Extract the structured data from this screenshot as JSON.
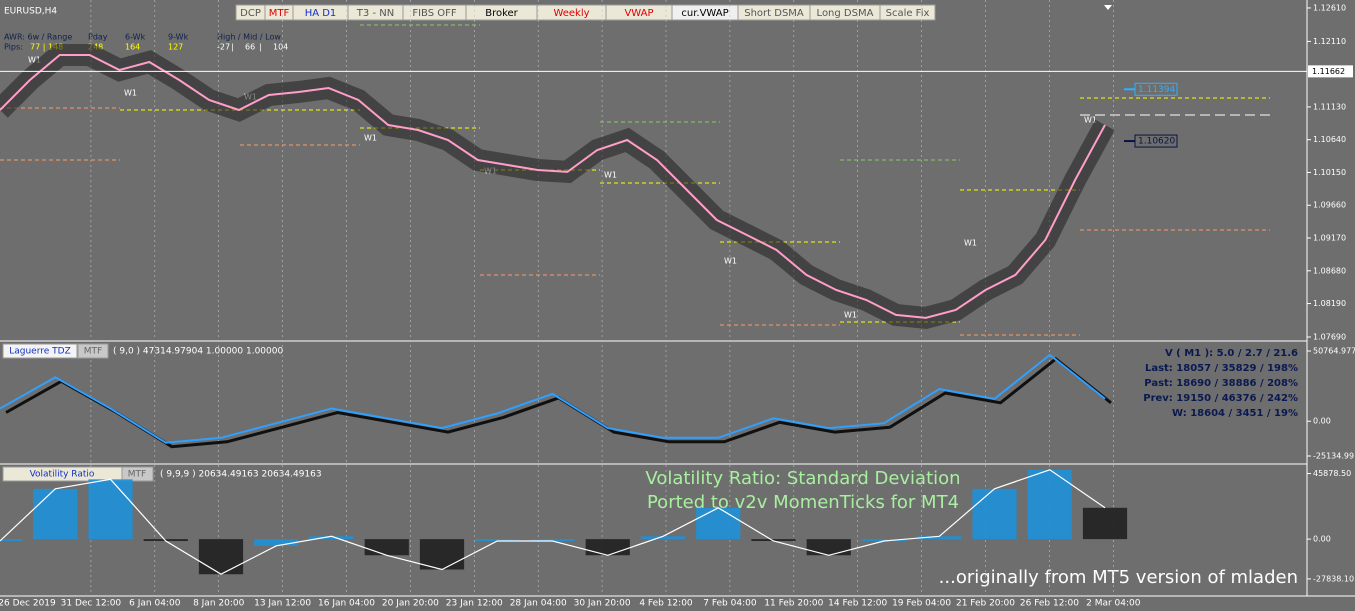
{
  "symbol": "EURUSD,H4",
  "toolbar": [
    {
      "label": "DCP",
      "color": "#555555"
    },
    {
      "label": "MTF",
      "color": "#e00000"
    },
    {
      "label": "HA D1",
      "color": "#1030d0"
    },
    {
      "label": "T3 - NN",
      "color": "#555555"
    },
    {
      "label": "FIBS OFF",
      "color": "#555555"
    },
    {
      "label": "Broker",
      "color": "#000000"
    },
    {
      "label": "Weekly",
      "color": "#e00000"
    },
    {
      "label": "VWAP",
      "color": "#e00000"
    },
    {
      "label": "cur.VWAP",
      "color": "#000000"
    },
    {
      "label": "Short DSMA",
      "color": "#555555"
    },
    {
      "label": "Long DSMA",
      "color": "#555555"
    },
    {
      "label": "Scale Fix",
      "color": "#555555"
    }
  ],
  "info": {
    "headers": [
      "AWR: 6w / Range",
      "Pday",
      "6-Wk",
      "9-Wk",
      "High / Mid / Low"
    ],
    "pips_label": "Pips:",
    "pips": [
      "77 | 148",
      "248",
      "164",
      "127"
    ],
    "high_mid_low": [
      "-27",
      "|",
      "66",
      "|",
      "104"
    ]
  },
  "w1_label": "W1",
  "time_labels": [
    "26 Dec 2019",
    "31 Dec 12:00",
    "6 Jan 04:00",
    "8 Jan 20:00",
    "13 Jan 12:00",
    "16 Jan 04:00",
    "20 Jan 20:00",
    "23 Jan 12:00",
    "28 Jan 04:00",
    "30 Jan 20:00",
    "4 Feb 12:00",
    "7 Feb 04:00",
    "11 Feb 20:00",
    "14 Feb 12:00",
    "19 Feb 04:00",
    "21 Feb 20:00",
    "26 Feb 12:00",
    "2 Mar 04:00"
  ],
  "laguerre": {
    "title": "Laguerre TDZ",
    "mtf": "MTF",
    "params": "( 9,0 ) 47314.97904 1.00000 1.00000",
    "stats": [
      "V ( M1 ): 5.0 / 2.7 / 21.6",
      "Last: 18057 / 35829 / 198%",
      "Past: 18690 / 38886 / 208%",
      "Prev: 19150 / 46376 / 242%",
      "W: 18604 / 3451 / 19%"
    ]
  },
  "volatility": {
    "title": "Volatility Ratio",
    "mtf": "MTF",
    "params": "( 9,9,9 ) 20634.49163 20634.49163",
    "caption": [
      "Volatility Ratio:  Standard Deviation",
      "Ported to v2v MomenTicks for MT4"
    ],
    "footer": "...originally from MT5 version of mladen"
  },
  "chart_data": [
    {
      "type": "line",
      "color": "#ff9ec8",
      "values": [
        1.11084,
        1.11533,
        1.11907,
        1.11907,
        1.11682,
        1.11802,
        1.11533,
        1.11234,
        1.11084,
        1.11309,
        1.11354,
        1.11413,
        1.11234,
        1.1086,
        1.10785,
        1.10636,
        1.10337,
        1.10262,
        1.10187,
        1.10158,
        1.10486,
        1.10636,
        1.10337,
        1.09888,
        1.0944,
        1.09216,
        1.08991,
        1.08618,
        1.08393,
        1.08244,
        1.0802,
        1.07975,
        1.08094,
        1.08393,
        1.08618,
        1.09141,
        1.10038,
        1.1086
      ],
      "ylim": [
        1.07645,
        1.12729
      ],
      "yticks": [
        {
          "value": 1.1261,
          "label": "1.12610"
        },
        {
          "value": 1.1211,
          "label": "1.12110"
        },
        {
          "value": 1.1113,
          "label": "1.11130"
        },
        {
          "value": 1.1064,
          "label": "1.10640"
        },
        {
          "value": 1.1015,
          "label": "1.10150"
        },
        {
          "value": 1.0966,
          "label": "1.09660"
        },
        {
          "value": 1.0917,
          "label": "1.09170"
        },
        {
          "value": 1.0868,
          "label": "1.08680"
        },
        {
          "value": 1.0819,
          "label": "1.08190"
        },
        {
          "value": 1.0769,
          "label": "1.07690"
        }
      ],
      "current": 1.11662,
      "levels": [
        1.11394,
        {
          "value": 1.1062,
          "label": "1.10620"
        }
      ]
    },
    {
      "type": "line",
      "color": "#30a0ff",
      "values": [
        9165,
        31725,
        9165,
        -15510,
        -11985,
        -1410,
        9165,
        2115,
        -4935,
        5640,
        19740,
        -4935,
        -11985,
        -11985,
        2115,
        -4935,
        -1410,
        23265,
        16215,
        47940,
        16215
      ],
      "ylim": [
        -29473,
        56548
      ],
      "yticks": [
        50764.977,
        {
          "value": 0,
          "label": "0.00"
        },
        -25134.99
      ]
    },
    {
      "type": "bar",
      "color": "#1e90d8",
      "values": [
        -1328,
        35192,
        41832,
        -1328,
        -24568,
        -4648,
        1992,
        -11288,
        -21248,
        -1328,
        -1328,
        -11288,
        1992,
        21912,
        -1328,
        -11288,
        -1328,
        1992,
        35192,
        48472,
        21912
      ],
      "ylim": [
        -39790,
        51855
      ],
      "yticks": [
        {
          "value": 45878.5,
          "label": "45878.50"
        },
        {
          "value": 0,
          "label": "0.00"
        },
        {
          "value": -27838.1,
          "label": "-27838.10"
        }
      ]
    }
  ]
}
